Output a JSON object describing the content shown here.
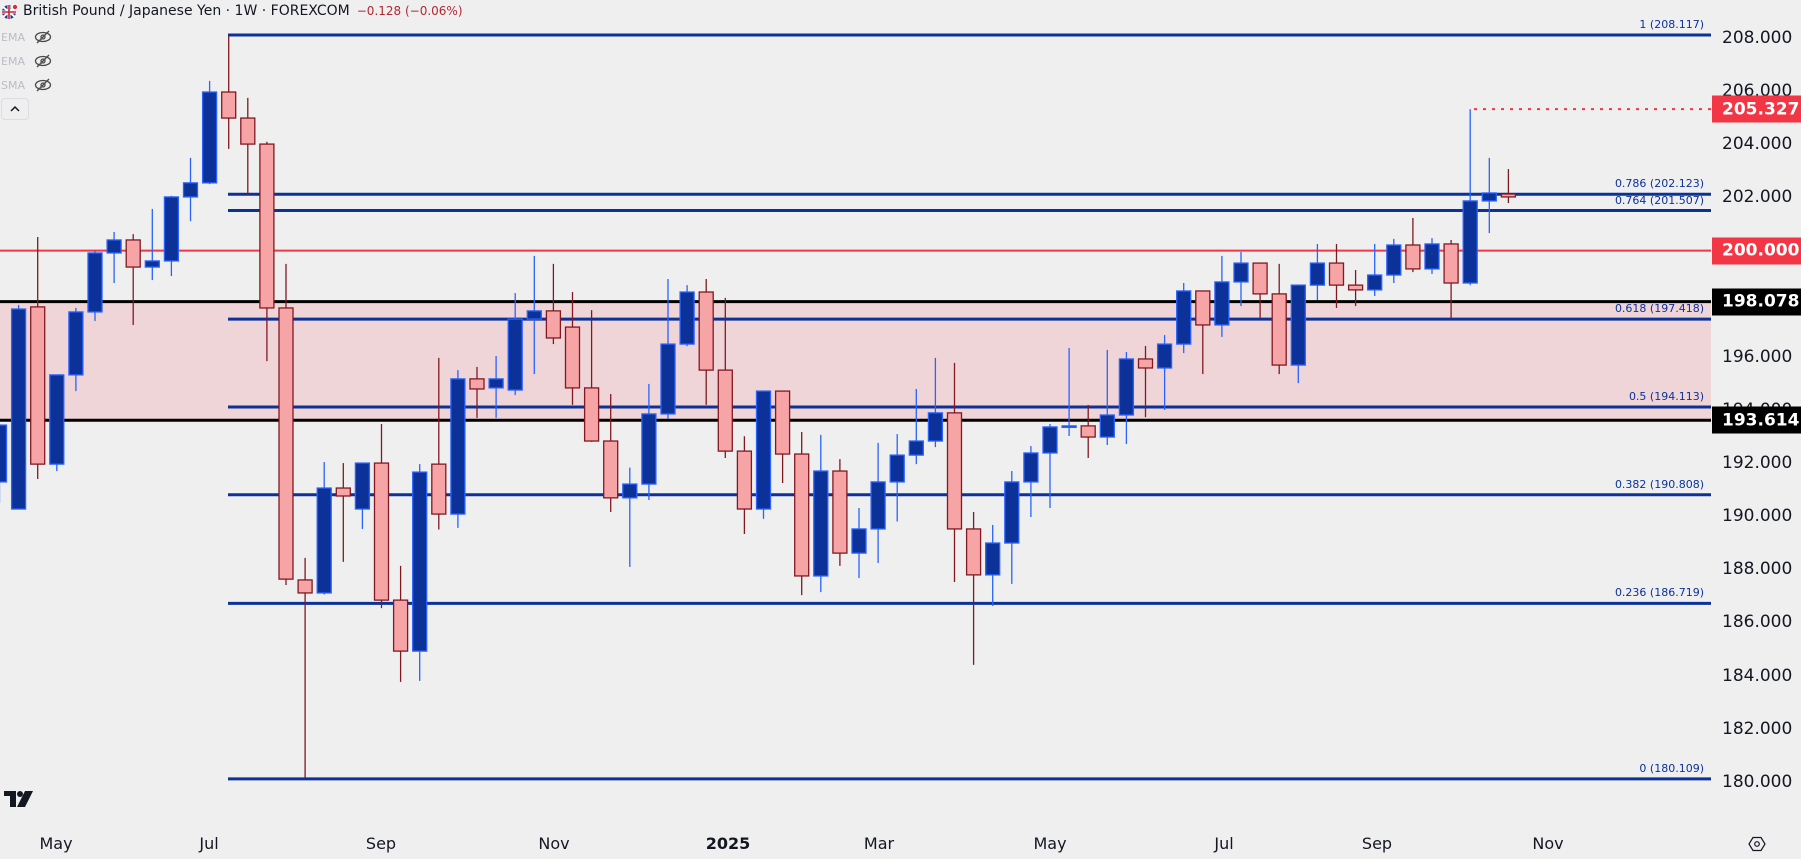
{
  "header": {
    "title": "British Pound / Japanese Yen · 1W · FOREXCOM",
    "change": "−0.128 (−0.06%)",
    "flag_icon": "gbp-jpy-flag-icon"
  },
  "indicators": [
    {
      "name": "EMA",
      "icon": "eye-off-icon"
    },
    {
      "name": "EMA",
      "icon": "eye-off-icon"
    },
    {
      "name": "SMA",
      "icon": "eye-off-icon"
    }
  ],
  "collapse_button": {
    "icon": "chevron-up-icon"
  },
  "colors": {
    "background": "#efefef",
    "up_body": "#0c3299",
    "up_border": "#2962ff",
    "down_body": "#f7a4a7",
    "down_border": "#801922",
    "fib_line": "#0c3299",
    "fib_label": "#0c3299",
    "red_level": "#f23645",
    "black_level": "#000000",
    "zone_fill": "#f0d5d8"
  },
  "chart_data": {
    "type": "candlestick",
    "title": "British Pound / Japanese Yen · 1W · FOREXCOM",
    "xlabel": "",
    "ylabel": "",
    "ylim": [
      178.5,
      209.2
    ],
    "y_ticks": [
      "208.000",
      "206.000",
      "204.000",
      "202.000",
      "200.000",
      "198.000",
      "196.000",
      "194.000",
      "192.000",
      "190.000",
      "188.000",
      "186.000",
      "184.000",
      "182.000",
      "180.000"
    ],
    "x_ticks": [
      {
        "label": "May",
        "x": 56
      },
      {
        "label": "Jul",
        "x": 209
      },
      {
        "label": "Sep",
        "x": 381
      },
      {
        "label": "Nov",
        "x": 554
      },
      {
        "label": "2025",
        "x": 728,
        "year": true
      },
      {
        "label": "Mar",
        "x": 879
      },
      {
        "label": "May",
        "x": 1050
      },
      {
        "label": "Jul",
        "x": 1224
      },
      {
        "label": "Sep",
        "x": 1377
      },
      {
        "label": "Nov",
        "x": 1548
      }
    ],
    "candles": [
      {
        "o": 191.29,
        "h": 193.47,
        "l": 190.5,
        "c": 193.43
      },
      {
        "o": 190.27,
        "h": 197.95,
        "l": 190.35,
        "c": 197.8
      },
      {
        "o": 197.88,
        "h": 200.51,
        "l": 191.4,
        "c": 191.96
      },
      {
        "o": 191.96,
        "h": 195.32,
        "l": 191.7,
        "c": 195.32
      },
      {
        "o": 195.32,
        "h": 197.84,
        "l": 194.71,
        "c": 197.69
      },
      {
        "o": 197.69,
        "h": 199.99,
        "l": 197.35,
        "c": 199.91
      },
      {
        "o": 199.91,
        "h": 200.7,
        "l": 198.78,
        "c": 200.4
      },
      {
        "o": 200.4,
        "h": 200.62,
        "l": 197.2,
        "c": 199.38
      },
      {
        "o": 199.38,
        "h": 201.57,
        "l": 198.89,
        "c": 199.61
      },
      {
        "o": 199.61,
        "h": 202.06,
        "l": 199.04,
        "c": 202.02
      },
      {
        "o": 202.02,
        "h": 203.49,
        "l": 201.11,
        "c": 202.55
      },
      {
        "o": 202.55,
        "h": 206.39,
        "l": 202.5,
        "c": 205.97
      },
      {
        "o": 205.97,
        "h": 208.117,
        "l": 203.83,
        "c": 204.99
      },
      {
        "o": 204.99,
        "h": 205.75,
        "l": 202.09,
        "c": 204.01
      },
      {
        "o": 204.01,
        "h": 204.1,
        "l": 195.84,
        "c": 197.84
      },
      {
        "o": 197.84,
        "h": 199.5,
        "l": 187.41,
        "c": 187.63
      },
      {
        "o": 187.6,
        "h": 188.43,
        "l": 180.14,
        "c": 187.11
      },
      {
        "o": 187.11,
        "h": 192.04,
        "l": 187.05,
        "c": 191.06
      },
      {
        "o": 191.06,
        "h": 192.0,
        "l": 188.28,
        "c": 190.76
      },
      {
        "o": 190.27,
        "h": 192.0,
        "l": 189.52,
        "c": 192.0
      },
      {
        "o": 192.0,
        "h": 193.47,
        "l": 186.54,
        "c": 186.84
      },
      {
        "o": 186.84,
        "h": 188.13,
        "l": 183.76,
        "c": 184.92
      },
      {
        "o": 184.92,
        "h": 191.96,
        "l": 183.8,
        "c": 191.66
      },
      {
        "o": 191.96,
        "h": 195.96,
        "l": 189.5,
        "c": 190.08
      },
      {
        "o": 190.08,
        "h": 195.5,
        "l": 189.56,
        "c": 195.17
      },
      {
        "o": 195.17,
        "h": 195.62,
        "l": 193.7,
        "c": 194.79
      },
      {
        "o": 194.83,
        "h": 196.03,
        "l": 193.7,
        "c": 195.17
      },
      {
        "o": 194.75,
        "h": 198.4,
        "l": 194.56,
        "c": 197.42
      },
      {
        "o": 197.42,
        "h": 199.8,
        "l": 195.35,
        "c": 197.73
      },
      {
        "o": 197.73,
        "h": 199.5,
        "l": 196.48,
        "c": 196.71
      },
      {
        "o": 197.12,
        "h": 198.44,
        "l": 194.19,
        "c": 194.83
      },
      {
        "o": 194.83,
        "h": 197.76,
        "l": 192.8,
        "c": 192.83
      },
      {
        "o": 192.83,
        "h": 194.6,
        "l": 190.16,
        "c": 190.69
      },
      {
        "o": 190.69,
        "h": 191.83,
        "l": 188.09,
        "c": 191.21
      },
      {
        "o": 191.21,
        "h": 194.98,
        "l": 190.61,
        "c": 193.85
      },
      {
        "o": 193.85,
        "h": 198.93,
        "l": 193.66,
        "c": 196.48
      },
      {
        "o": 196.48,
        "h": 198.7,
        "l": 196.4,
        "c": 198.44
      },
      {
        "o": 198.44,
        "h": 198.93,
        "l": 194.19,
        "c": 195.5
      },
      {
        "o": 195.5,
        "h": 198.22,
        "l": 192.19,
        "c": 192.45
      },
      {
        "o": 192.45,
        "h": 193.01,
        "l": 189.33,
        "c": 190.27
      },
      {
        "o": 190.27,
        "h": 194.71,
        "l": 189.9,
        "c": 194.71
      },
      {
        "o": 194.71,
        "h": 194.71,
        "l": 191.25,
        "c": 192.34
      },
      {
        "o": 192.34,
        "h": 193.17,
        "l": 187.03,
        "c": 187.75
      },
      {
        "o": 187.75,
        "h": 193.06,
        "l": 187.14,
        "c": 191.7
      },
      {
        "o": 191.7,
        "h": 192.15,
        "l": 188.13,
        "c": 188.61
      },
      {
        "o": 188.61,
        "h": 190.31,
        "l": 187.67,
        "c": 189.52
      },
      {
        "o": 189.52,
        "h": 192.76,
        "l": 188.24,
        "c": 191.29
      },
      {
        "o": 191.29,
        "h": 193.09,
        "l": 189.8,
        "c": 192.3
      },
      {
        "o": 192.3,
        "h": 194.79,
        "l": 191.96,
        "c": 192.83
      },
      {
        "o": 192.83,
        "h": 195.96,
        "l": 192.6,
        "c": 193.89
      },
      {
        "o": 193.89,
        "h": 195.77,
        "l": 187.52,
        "c": 189.52
      },
      {
        "o": 189.52,
        "h": 190.16,
        "l": 184.4,
        "c": 187.79
      },
      {
        "o": 187.79,
        "h": 189.67,
        "l": 186.62,
        "c": 188.99
      },
      {
        "o": 188.99,
        "h": 191.7,
        "l": 187.45,
        "c": 191.29
      },
      {
        "o": 191.29,
        "h": 192.64,
        "l": 189.97,
        "c": 192.38
      },
      {
        "o": 192.38,
        "h": 193.47,
        "l": 190.31,
        "c": 193.36
      },
      {
        "o": 193.36,
        "h": 196.33,
        "l": 193.02,
        "c": 193.4
      },
      {
        "o": 193.4,
        "h": 194.19,
        "l": 192.19,
        "c": 192.98
      },
      {
        "o": 192.98,
        "h": 196.26,
        "l": 192.68,
        "c": 193.81
      },
      {
        "o": 193.81,
        "h": 196.18,
        "l": 192.72,
        "c": 195.92
      },
      {
        "o": 195.92,
        "h": 196.41,
        "l": 193.73,
        "c": 195.58
      },
      {
        "o": 195.58,
        "h": 196.82,
        "l": 194.0,
        "c": 196.48
      },
      {
        "o": 196.48,
        "h": 198.78,
        "l": 196.14,
        "c": 198.48
      },
      {
        "o": 198.48,
        "h": 198.48,
        "l": 195.35,
        "c": 197.2
      },
      {
        "o": 197.2,
        "h": 199.8,
        "l": 196.75,
        "c": 198.82
      },
      {
        "o": 198.82,
        "h": 199.95,
        "l": 197.91,
        "c": 199.53
      },
      {
        "o": 199.53,
        "h": 199.53,
        "l": 197.46,
        "c": 198.37
      },
      {
        "o": 198.37,
        "h": 199.5,
        "l": 195.35,
        "c": 195.69
      },
      {
        "o": 195.69,
        "h": 198.7,
        "l": 195.01,
        "c": 198.7
      },
      {
        "o": 198.7,
        "h": 200.25,
        "l": 198.14,
        "c": 199.53
      },
      {
        "o": 199.53,
        "h": 200.25,
        "l": 197.84,
        "c": 198.7
      },
      {
        "o": 198.7,
        "h": 199.27,
        "l": 197.91,
        "c": 198.52
      },
      {
        "o": 198.52,
        "h": 200.25,
        "l": 198.29,
        "c": 199.08
      },
      {
        "o": 199.08,
        "h": 200.44,
        "l": 198.78,
        "c": 200.21
      },
      {
        "o": 200.21,
        "h": 201.23,
        "l": 199.19,
        "c": 199.31
      },
      {
        "o": 199.31,
        "h": 200.47,
        "l": 199.12,
        "c": 200.25
      },
      {
        "o": 200.25,
        "h": 200.4,
        "l": 197.46,
        "c": 198.78
      },
      {
        "o": 198.78,
        "h": 205.327,
        "l": 198.7,
        "c": 201.87
      },
      {
        "o": 201.87,
        "h": 203.49,
        "l": 200.66,
        "c": 202.17
      },
      {
        "o": 202.13,
        "h": 203.07,
        "l": 201.79,
        "c": 202.02
      }
    ],
    "fib_levels": [
      {
        "label": "1 (208.117)",
        "price": 208.117
      },
      {
        "label": "0.786 (202.123)",
        "price": 202.123
      },
      {
        "label": "0.764 (201.507)",
        "price": 201.507
      },
      {
        "label": "0.618 (197.418)",
        "price": 197.418
      },
      {
        "label": "0.5 (194.113)",
        "price": 194.113
      },
      {
        "label": "0.382 (190.808)",
        "price": 190.808
      },
      {
        "label": "0.236 (186.719)",
        "price": 186.719
      },
      {
        "label": "0 (180.109)",
        "price": 180.109
      }
    ],
    "horizontal_levels": [
      {
        "price": 200.0,
        "label": "200.000",
        "color": "#f23645",
        "style": "solid"
      },
      {
        "price": 198.078,
        "label": "198.078",
        "color": "#000000",
        "style": "solid"
      },
      {
        "price": 193.614,
        "label": "193.614",
        "color": "#000000",
        "style": "solid"
      },
      {
        "price": 205.327,
        "label": "205.327",
        "color": "#f23645",
        "style": "dotted"
      }
    ],
    "zone": {
      "top": 198.078,
      "bottom": 193.614,
      "color": "#f0d5d8"
    }
  }
}
